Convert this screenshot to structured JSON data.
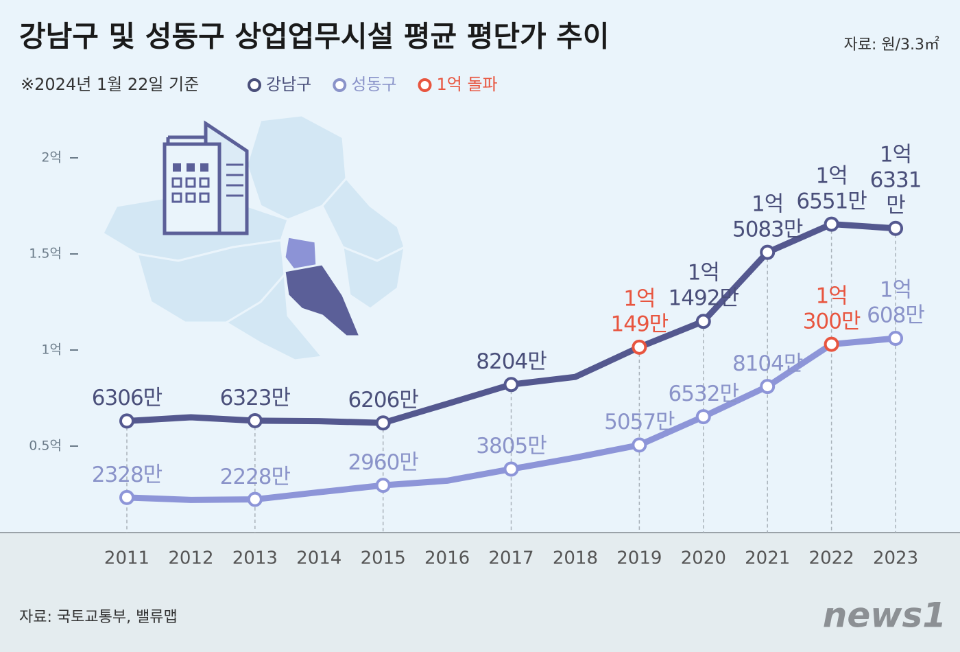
{
  "chart_data": {
    "type": "line",
    "title": "강남구 및 성동구 상업업무시설 평균 평단가 추이",
    "unit_note": "자료: 원/3.3㎡",
    "subtitle": "※2024년 1월 22일 기준",
    "source": "자료: 국토교통부, 밸류맵",
    "logo": "news1",
    "categories": [
      "2011",
      "2012",
      "2013",
      "2014",
      "2015",
      "2016",
      "2017",
      "2018",
      "2019",
      "2020",
      "2021",
      "2022",
      "2023"
    ],
    "series": [
      {
        "name": "강남구",
        "color": "#54588f",
        "label_color": "#4a4f7a",
        "values": [
          0.6306,
          0.65,
          0.6323,
          0.63,
          0.6206,
          0.72,
          0.8204,
          0.86,
          1.0149,
          1.1492,
          1.5083,
          1.6551,
          1.6331
        ],
        "value_labels": [
          "6306만",
          null,
          "6323만",
          null,
          "6206만",
          null,
          "8204만",
          null,
          "1억\n149만",
          "1억\n1492만",
          "1억\n5083만",
          "1억\n6551만",
          "1억\n6331만"
        ],
        "highlight_category": "2019"
      },
      {
        "name": "성동구",
        "color": "#8d95d8",
        "label_color": "#8a93c9",
        "values": [
          0.2328,
          0.22,
          0.2228,
          0.26,
          0.296,
          0.32,
          0.3805,
          0.44,
          0.5057,
          0.6532,
          0.8104,
          1.03,
          1.0608
        ],
        "value_labels": [
          "2328만",
          null,
          "2228만",
          null,
          "2960만",
          null,
          "3805만",
          null,
          "5057만",
          "6532만",
          "8104만",
          "1억\n300만",
          "1억\n608만"
        ],
        "highlight_category": "2022"
      }
    ],
    "highlight": {
      "name": "1억 돌파",
      "color": "#e8553f"
    },
    "ylim": [
      0.05,
      2.1
    ],
    "yticks": [
      {
        "value": 0.5,
        "label": "0.5억"
      },
      {
        "value": 1,
        "label": "1억"
      },
      {
        "value": 1.5,
        "label": "1.5억"
      },
      {
        "value": 2,
        "label": "2억"
      }
    ]
  }
}
